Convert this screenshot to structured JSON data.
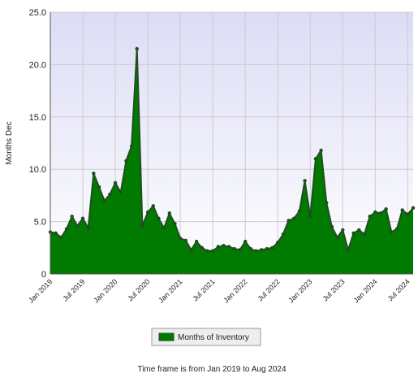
{
  "chart_data": {
    "type": "area",
    "y_label": "Months Dec",
    "footer": "Time frame is from Jan 2019 to Aug 2024",
    "x": [
      "2019-01",
      "2019-02",
      "2019-03",
      "2019-04",
      "2019-05",
      "2019-06",
      "2019-07",
      "2019-08",
      "2019-09",
      "2019-10",
      "2019-11",
      "2019-12",
      "2020-01",
      "2020-02",
      "2020-03",
      "2020-04",
      "2020-05",
      "2020-06",
      "2020-07",
      "2020-08",
      "2020-09",
      "2020-10",
      "2020-11",
      "2020-12",
      "2021-01",
      "2021-02",
      "2021-03",
      "2021-04",
      "2021-05",
      "2021-06",
      "2021-07",
      "2021-08",
      "2021-09",
      "2021-10",
      "2021-11",
      "2021-12",
      "2022-01",
      "2022-02",
      "2022-03",
      "2022-04",
      "2022-05",
      "2022-06",
      "2022-07",
      "2022-08",
      "2022-09",
      "2022-10",
      "2022-11",
      "2022-12",
      "2023-01",
      "2023-02",
      "2023-03",
      "2023-04",
      "2023-05",
      "2023-06",
      "2023-07",
      "2023-08",
      "2023-09",
      "2023-10",
      "2023-11",
      "2023-12",
      "2024-01",
      "2024-02",
      "2024-03",
      "2024-04",
      "2024-05",
      "2024-06",
      "2024-07",
      "2024-08"
    ],
    "series": [
      {
        "name": "Months of Inventory",
        "color": "#007a00",
        "line_color": "#1f4f1f",
        "values": [
          4.0,
          3.9,
          3.5,
          4.3,
          5.5,
          4.6,
          5.3,
          4.4,
          9.6,
          8.3,
          7.0,
          7.6,
          8.7,
          7.8,
          10.8,
          12.2,
          21.5,
          4.6,
          5.9,
          6.5,
          5.3,
          4.4,
          5.8,
          4.8,
          3.4,
          3.2,
          2.3,
          3.1,
          2.5,
          2.2,
          2.2,
          2.6,
          2.7,
          2.6,
          2.4,
          2.3,
          3.1,
          2.4,
          2.2,
          2.3,
          2.4,
          2.5,
          3.0,
          3.8,
          5.1,
          5.3,
          6.0,
          8.9,
          5.5,
          11.0,
          11.8,
          6.8,
          4.5,
          3.5,
          4.2,
          2.3,
          3.9,
          4.2,
          3.8,
          5.5,
          5.9,
          5.8,
          6.2,
          4.0,
          4.3,
          6.1,
          5.7,
          6.3
        ]
      }
    ],
    "ylim": [
      0,
      25
    ],
    "yticks": [
      0,
      {
        "value": 5,
        "label": "5.0"
      },
      {
        "value": 10,
        "label": "10.0"
      },
      {
        "value": 15,
        "label": "15.0"
      },
      {
        "value": 20,
        "label": "20.0"
      },
      {
        "value": 25,
        "label": "25.0"
      }
    ],
    "xticks": [
      {
        "value": "2019-01",
        "label": "Jan 2019"
      },
      {
        "value": "2019-07",
        "label": "Jul 2019"
      },
      {
        "value": "2020-01",
        "label": "Jan 2020"
      },
      {
        "value": "2020-07",
        "label": "Jul 2020"
      },
      {
        "value": "2021-01",
        "label": "Jan 2021"
      },
      {
        "value": "2021-07",
        "label": "Jul 2021"
      },
      {
        "value": "2022-01",
        "label": "Jan 2022"
      },
      {
        "value": "2022-07",
        "label": "Jul 2022"
      },
      {
        "value": "2023-01",
        "label": "Jan 2023"
      },
      {
        "value": "2023-07",
        "label": "Jul 2023"
      },
      {
        "value": "2024-01",
        "label": "Jan 2024"
      },
      {
        "value": "2024-07",
        "label": "Jul 2024"
      }
    ],
    "grid": true
  }
}
